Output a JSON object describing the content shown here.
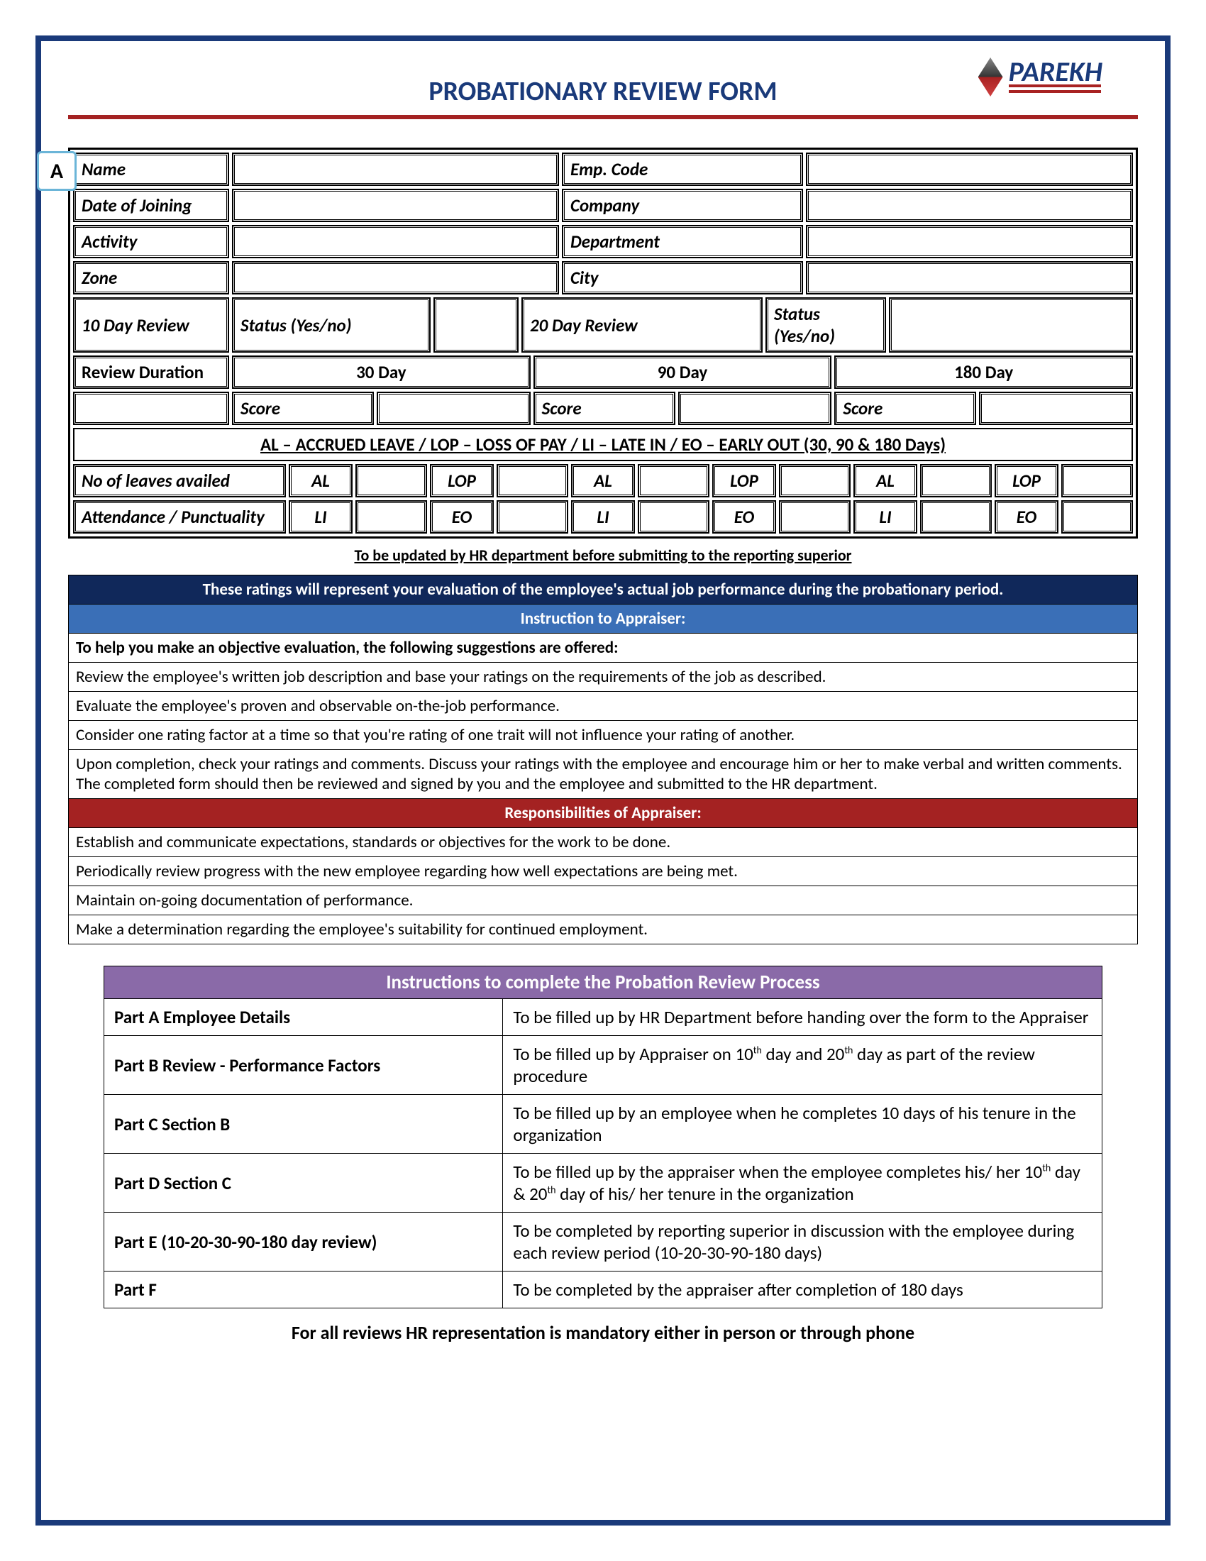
{
  "title": "PROBATIONARY REVIEW FORM",
  "logo_text": "PAREKH",
  "badge": "A",
  "info_fields": {
    "name": "Name",
    "emp_code": "Emp. Code",
    "doj": "Date of Joining",
    "company": "Company",
    "activity": "Activity",
    "department": "Department",
    "zone": "Zone",
    "city": "City"
  },
  "review": {
    "d10": "10 Day Review",
    "status1": "Status (Yes/no)",
    "d20": "20 Day Review",
    "status2": "Status (Yes/no)",
    "duration": "Review Duration",
    "c30": "30 Day",
    "c90": "90 Day",
    "c180": "180 Day",
    "score": "Score"
  },
  "legend": "AL – ACCRUED LEAVE / LOP – LOSS OF PAY / LI – LATE IN / EO – EARLY OUT (30, 90 & 180 Days)",
  "leaves": {
    "title": "No of leaves availed",
    "al": "AL",
    "lop": "LOP",
    "att": "Attendance / Punctuality",
    "li": "LI",
    "eo": "EO"
  },
  "footnote": "To be updated by HR department before submitting to the reporting superior",
  "banners": {
    "navy": "These ratings will represent your evaluation of the employee's actual job performance during the probationary period.",
    "blue": "Instruction to Appraiser:",
    "red": "Responsibilities of Appraiser:"
  },
  "instructions": {
    "lead": "To help you make an objective evaluation, the following suggestions are offered:",
    "i1": "Review the employee's written job description and base your ratings on the requirements of the job as described.",
    "i2": "Evaluate the employee's proven and observable on-the-job performance.",
    "i3": "Consider one rating factor at a time so that you're rating of one trait will not influence your rating of another.",
    "i4": "Upon completion, check your ratings and comments. Discuss your ratings with the employee and encourage him or her to make verbal and written comments. The completed form should then be reviewed and signed by you and the employee and submitted to the HR department."
  },
  "responsibilities": {
    "r1": "Establish and communicate expectations, standards or objectives for the work to be done.",
    "r2": "Periodically review progress with the new employee regarding how well expectations are being met.",
    "r3": "Maintain on-going documentation of performance.",
    "r4": "Make a determination regarding the employee's suitability for continued employment."
  },
  "ptable": {
    "head": "Instructions to complete the Probation Review Process",
    "rows": [
      {
        "l": "Part A Employee Details",
        "r": "To be filled up by HR Department before handing over the form to the Appraiser"
      },
      {
        "l": "Part B Review - Performance Factors",
        "r": "To be filled up by Appraiser on 10<sup>th</sup> day and 20<sup>th</sup> day as part of the review procedure"
      },
      {
        "l": "Part C Section B",
        "r": "To be filled up by an employee when he completes 10 days of his tenure in the organization"
      },
      {
        "l": "Part D Section C",
        "r": "To be filled up by the appraiser when the employee completes his/ her 10<sup>th</sup> day & 20<sup>th</sup> day of his/ her tenure in the organization"
      },
      {
        "l": "Part E (10-20-30-90-180 day review)",
        "r": "To be completed by reporting superior in discussion with the employee during each review period (10-20-30-90-180 days)"
      },
      {
        "l": "Part F",
        "r": "To be completed by the appraiser after completion of 180 days"
      }
    ]
  },
  "endnote": "For all reviews HR representation is mandatory either in person or through phone",
  "colors": {
    "border_navy": "#1a3a7a",
    "rule_red": "#a42222",
    "banner_blue": "#3a6fb7",
    "banner_navy": "#10285a",
    "purple": "#8a6aa8",
    "badge_border": "#6bb5d8"
  }
}
